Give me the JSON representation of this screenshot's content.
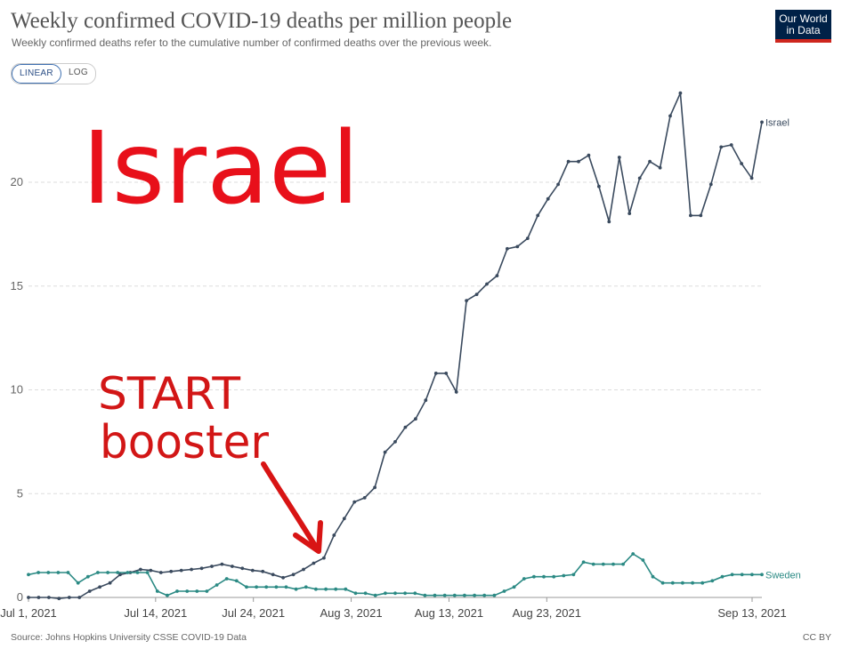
{
  "header": {
    "title": "Weekly confirmed COVID-19 deaths per million people",
    "subtitle": "Weekly confirmed deaths refer to the cumulative number of confirmed deaths over the previous week."
  },
  "logo": {
    "line1": "Our World",
    "line2": "in Data"
  },
  "scale_toggle": {
    "linear_label": "LINEAR",
    "log_label": "LOG",
    "selected": "LINEAR"
  },
  "footer": {
    "source": "Source: Johns Hopkins University CSSE COVID-19 Data",
    "license": "CC BY"
  },
  "annotations": {
    "handwritten_title": "Israel",
    "handwritten_note_line1": "START",
    "handwritten_note_line2": "booster",
    "arrow_color": "#d81414"
  },
  "chart_data": {
    "type": "line",
    "title": "Weekly confirmed COVID-19 deaths per million people",
    "xlabel": "",
    "ylabel": "",
    "x_start": "2021-07-01",
    "x_end": "2021-09-14",
    "ylim": [
      0,
      24.5
    ],
    "yticks": [
      0,
      5,
      10,
      15,
      20
    ],
    "xticks": [
      {
        "date": "2021-07-01",
        "label": "Jul 1, 2021"
      },
      {
        "date": "2021-07-14",
        "label": "Jul 14, 2021"
      },
      {
        "date": "2021-07-24",
        "label": "Jul 24, 2021"
      },
      {
        "date": "2021-08-03",
        "label": "Aug 3, 2021"
      },
      {
        "date": "2021-08-13",
        "label": "Aug 13, 2021"
      },
      {
        "date": "2021-08-23",
        "label": "Aug 23, 2021"
      },
      {
        "date": "2021-09-13",
        "label": "Sep 13, 2021"
      }
    ],
    "grid": "horizontal dashed",
    "legend": "labels at line ends",
    "series": [
      {
        "name": "Israel",
        "color": "#3a4a5e",
        "values": [
          0.0,
          0.0,
          0.0,
          -0.05,
          0.0,
          0.0,
          0.3,
          0.5,
          0.7,
          1.1,
          1.2,
          1.35,
          1.3,
          1.2,
          1.25,
          1.3,
          1.35,
          1.4,
          1.5,
          1.6,
          1.5,
          1.4,
          1.3,
          1.25,
          1.1,
          0.95,
          1.1,
          1.35,
          1.65,
          1.9,
          3.0,
          3.8,
          4.6,
          4.8,
          5.3,
          7.0,
          7.5,
          8.2,
          8.6,
          9.5,
          10.8,
          10.8,
          9.9,
          14.3,
          14.6,
          15.1,
          15.5,
          16.8,
          16.9,
          17.3,
          18.4,
          19.2,
          19.9,
          21.0,
          21.0,
          21.3,
          19.8,
          18.1,
          21.2,
          18.5,
          20.2,
          21.0,
          20.7,
          23.2,
          24.3,
          18.4,
          18.4,
          19.9,
          21.7,
          21.8,
          20.9,
          20.2,
          22.9
        ]
      },
      {
        "name": "Sweden",
        "color": "#2b8a84",
        "values": [
          1.1,
          1.2,
          1.2,
          1.2,
          1.2,
          0.7,
          1.0,
          1.2,
          1.2,
          1.2,
          1.2,
          1.2,
          1.2,
          0.3,
          0.1,
          0.3,
          0.3,
          0.3,
          0.3,
          0.6,
          0.9,
          0.8,
          0.5,
          0.5,
          0.5,
          0.5,
          0.5,
          0.4,
          0.5,
          0.4,
          0.4,
          0.4,
          0.4,
          0.2,
          0.2,
          0.1,
          0.2,
          0.2,
          0.2,
          0.2,
          0.1,
          0.1,
          0.1,
          0.1,
          0.1,
          0.1,
          0.1,
          0.1,
          0.3,
          0.5,
          0.9,
          1.0,
          1.0,
          1.0,
          1.05,
          1.1,
          1.7,
          1.6,
          1.6,
          1.6,
          1.6,
          2.1,
          1.8,
          1.0,
          0.7,
          0.7,
          0.7,
          0.7,
          0.7,
          0.8,
          1.0,
          1.1,
          1.1,
          1.1,
          1.1
        ]
      }
    ]
  }
}
